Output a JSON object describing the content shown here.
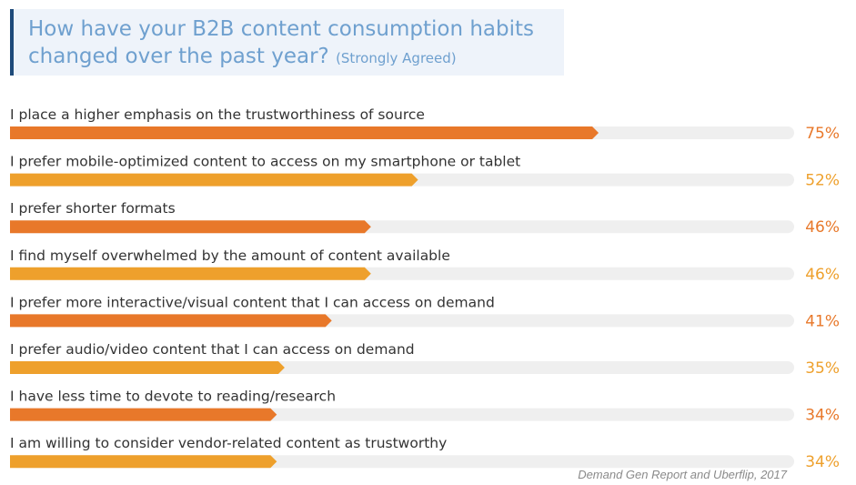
{
  "header": {
    "title_line1": "How have your B2B content consumption habits",
    "title_line2": "changed over the past year?",
    "subtitle": "(Strongly Agreed)"
  },
  "source": "Demand Gen Report and Uberflip, 2017",
  "colors": {
    "bar_dark": "#e8782a",
    "bar_light": "#eea02c",
    "track": "#efefef",
    "value_dark": "#e8782a",
    "value_light": "#eea02c",
    "label": "#333333"
  },
  "chart_data": {
    "type": "bar",
    "orientation": "horizontal",
    "categories": [
      "I place a higher emphasis on the trustworthiness of source",
      "I prefer mobile-optimized content to access on my smartphone or tablet",
      "I prefer shorter formats",
      "I find myself overwhelmed by the amount of content available",
      "I prefer more interactive/visual content that I can access on demand",
      "I prefer audio/video content that I can access on demand",
      "I have less time to devote to reading/research",
      "I am willing to consider vendor-related content as trustworthy"
    ],
    "values": [
      75,
      52,
      46,
      46,
      41,
      35,
      34,
      34
    ],
    "value_labels": [
      "75%",
      "52%",
      "46%",
      "46%",
      "41%",
      "35%",
      "34%",
      "34%"
    ],
    "xlim": [
      0,
      100
    ],
    "grid": false,
    "legend": "none"
  }
}
